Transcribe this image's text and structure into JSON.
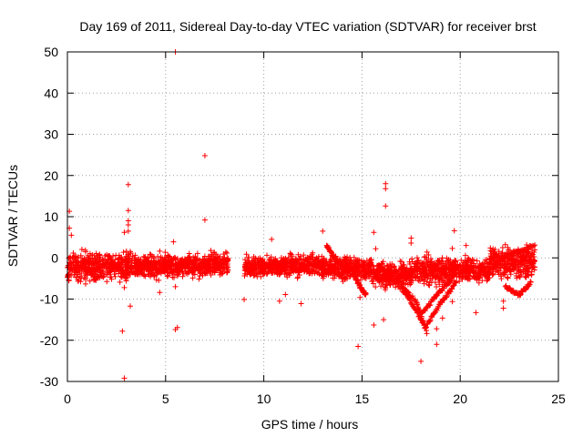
{
  "chart_data": {
    "type": "scatter",
    "title": "Day 169 of 2011, Sidereal Day-to-day VTEC variation (SDTVAR) for receiver brst",
    "xlabel": "GPS time / hours",
    "ylabel": "SDTVAR / TECUs",
    "xlim": [
      0,
      25
    ],
    "ylim": [
      -30,
      50
    ],
    "xticks": [
      0,
      5,
      10,
      15,
      20,
      25
    ],
    "yticks": [
      -30,
      -20,
      -10,
      0,
      10,
      20,
      30,
      40,
      50
    ],
    "grid": true,
    "marker": "+",
    "series": [
      {
        "name": "SDTVAR",
        "color": "#ff0000",
        "segments": [
          {
            "x0": 0.0,
            "x1": 1.5,
            "center": -2,
            "spread": 2.5
          },
          {
            "x0": 1.5,
            "x1": 3.3,
            "center": -2,
            "spread": 2.3
          },
          {
            "x0": 3.3,
            "x1": 5.0,
            "center": -2,
            "spread": 2.0
          },
          {
            "x0": 5.0,
            "x1": 7.2,
            "center": -2,
            "spread": 1.8
          },
          {
            "x0": 7.2,
            "x1": 8.2,
            "center": -1.5,
            "spread": 1.8
          },
          {
            "x0": 9.0,
            "x1": 11.0,
            "center": -2,
            "spread": 1.6
          },
          {
            "x0": 11.0,
            "x1": 13.0,
            "center": -2,
            "spread": 1.8
          },
          {
            "x0": 13.0,
            "x1": 15.5,
            "center": -2.5,
            "spread": 1.8
          },
          {
            "x0": 15.5,
            "x1": 17.5,
            "center": -4,
            "spread": 2.0
          },
          {
            "x0": 17.5,
            "x1": 19.5,
            "center": -3,
            "spread": 2.5
          },
          {
            "x0": 19.5,
            "x1": 21.5,
            "center": -3,
            "spread": 2.0
          },
          {
            "x0": 21.5,
            "x1": 23.8,
            "center": -1,
            "spread": 2.5
          }
        ],
        "trails": [
          {
            "x": [
              16.3,
              17.3,
              18.1
            ],
            "y": [
              -4,
              -9,
              -16
            ]
          },
          {
            "x": [
              16.8,
              17.8,
              18.3
            ],
            "y": [
              -5,
              -11,
              -18
            ]
          },
          {
            "x": [
              18.2,
              19.0,
              19.8
            ],
            "y": [
              -17,
              -11,
              -6
            ]
          },
          {
            "x": [
              18.0,
              18.8,
              19.6
            ],
            "y": [
              -14,
              -9,
              -5
            ]
          },
          {
            "x": [
              21.4,
              22.6,
              23.8
            ],
            "y": [
              -3,
              1,
              3
            ]
          },
          {
            "x": [
              22.3,
              23.0,
              23.6
            ],
            "y": [
              -7,
              -9,
              -6
            ]
          },
          {
            "x": [
              13.2,
              13.6,
              14.1
            ],
            "y": [
              3,
              0,
              -2
            ]
          },
          {
            "x": [
              14.6,
              14.9,
              15.2
            ],
            "y": [
              -4,
              -7,
              -9
            ]
          }
        ],
        "points": [
          {
            "x": 5.5,
            "y": 50
          },
          {
            "x": 7.0,
            "y": 24.8
          },
          {
            "x": 3.1,
            "y": 17.8
          },
          {
            "x": 16.2,
            "y": 18
          },
          {
            "x": 16.2,
            "y": 16.8
          },
          {
            "x": 16.2,
            "y": 12.6
          },
          {
            "x": 0.1,
            "y": 11.3
          },
          {
            "x": 3.1,
            "y": 11.5
          },
          {
            "x": 3.1,
            "y": 9
          },
          {
            "x": 3.1,
            "y": 8
          },
          {
            "x": 3.1,
            "y": 6.5
          },
          {
            "x": 7.0,
            "y": 9.2
          },
          {
            "x": 2.9,
            "y": 6.2
          },
          {
            "x": 19.7,
            "y": 6.6
          },
          {
            "x": 13.0,
            "y": 6.5
          },
          {
            "x": 15.6,
            "y": 6.2
          },
          {
            "x": 15.7,
            "y": 2.2
          },
          {
            "x": 17.5,
            "y": 4.8
          },
          {
            "x": 17.5,
            "y": 3.6
          },
          {
            "x": 20.3,
            "y": 3
          },
          {
            "x": 19.6,
            "y": 2.3
          },
          {
            "x": 22.3,
            "y": 3.2
          },
          {
            "x": 0.1,
            "y": 7.2
          },
          {
            "x": 0.2,
            "y": 5.5
          },
          {
            "x": 10.4,
            "y": 4.5
          },
          {
            "x": 5.4,
            "y": 3.9
          },
          {
            "x": 7.3,
            "y": 1.8
          },
          {
            "x": 2.9,
            "y": -7.2
          },
          {
            "x": 3.2,
            "y": -11.7
          },
          {
            "x": 4.7,
            "y": -8.4
          },
          {
            "x": 5.5,
            "y": -7
          },
          {
            "x": 9.0,
            "y": -10.1
          },
          {
            "x": 10.8,
            "y": -10.5
          },
          {
            "x": 11.1,
            "y": -8.9
          },
          {
            "x": 11.9,
            "y": -11.1
          },
          {
            "x": 14.9,
            "y": -9.6
          },
          {
            "x": 15.6,
            "y": -16.3
          },
          {
            "x": 16.1,
            "y": -15
          },
          {
            "x": 2.8,
            "y": -17.8
          },
          {
            "x": 5.5,
            "y": -17.4
          },
          {
            "x": 5.6,
            "y": -16.9
          },
          {
            "x": 2.9,
            "y": -29.2
          },
          {
            "x": 14.8,
            "y": -21.5
          },
          {
            "x": 18.0,
            "y": -25.1
          },
          {
            "x": 18.8,
            "y": -21
          },
          {
            "x": 18.8,
            "y": -17.2
          },
          {
            "x": 19.1,
            "y": -14.6
          },
          {
            "x": 19.6,
            "y": -10.6
          },
          {
            "x": 20.8,
            "y": -13.3
          },
          {
            "x": 22.2,
            "y": -12.2
          },
          {
            "x": 22.2,
            "y": -10.5
          }
        ]
      }
    ]
  }
}
